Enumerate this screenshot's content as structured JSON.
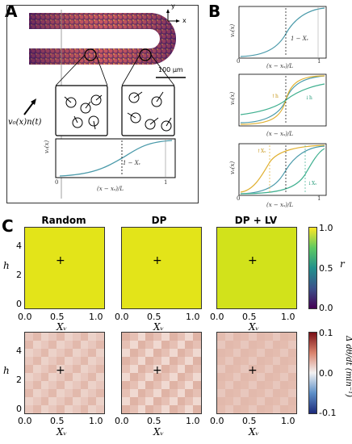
{
  "panels": {
    "a": "A",
    "b": "B",
    "c": "C"
  },
  "panel_a": {
    "axis_y": "y",
    "axis_x": "x",
    "scalebar": "100 μm",
    "force_label": "v₀(x)n(t)",
    "graph": {
      "ylabel": "v₀(x)",
      "xlabel": "(x − xₛ)/L",
      "tick_left": "0",
      "tick_right": "1",
      "threshold_label": "1 − Xᵥ"
    }
  },
  "panel_b": {
    "plots": [
      {
        "ylabel": "v₀(x)",
        "xlabel": "(x − xₛ)/L",
        "tick0": "0",
        "tick1": "1",
        "annotations": [
          "1 − Xᵥ"
        ]
      },
      {
        "ylabel": "v₀(x)",
        "xlabel": "(x − xₛ)/L",
        "tick0": "0",
        "tick1": "1",
        "annotations": [
          "↑h",
          "↓h"
        ]
      },
      {
        "ylabel": "v₀(x)",
        "xlabel": "(x − xₛ)/L",
        "tick0": "0",
        "tick1": "1",
        "annotations": [
          "↑Xᵥ",
          "↓Xᵥ"
        ]
      }
    ]
  },
  "panel_c": {
    "columns": [
      "Random",
      "DP",
      "DP + LV"
    ],
    "ylabel": "h",
    "xlabel": "Xᵥ",
    "xticks": [
      "0.0",
      "0.5",
      "1.0"
    ],
    "yticks": [
      "0",
      "2",
      "4"
    ],
    "top_colorbar": {
      "label": "r",
      "ticks": [
        "1.0",
        "0.5",
        "0.0"
      ]
    },
    "bottom_colorbar": {
      "label": "Δ dθ/dt (min⁻¹)",
      "ticks": [
        "0.1",
        "0.0",
        "-0.1"
      ]
    },
    "marker": "+",
    "colors": {
      "top_fill": "#e3e419",
      "top_fill_lv": "#d2e21b",
      "bottom_base": "#e6c3b8"
    }
  }
}
